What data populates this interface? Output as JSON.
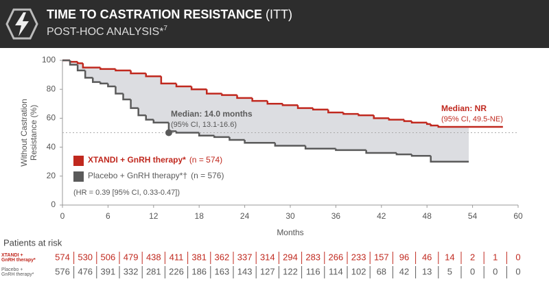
{
  "header": {
    "title": "TIME TO CASTRATION RESISTANCE",
    "title_suffix": "(ITT)",
    "subtitle": "POST-HOC ANALYSIS*",
    "subtitle_ref": "7"
  },
  "chart_data": {
    "type": "line",
    "step": true,
    "xlabel": "Months",
    "ylabel": [
      "Without Castration",
      "Resistance (%)"
    ],
    "xlim": [
      0,
      60
    ],
    "xticks": [
      0,
      6,
      12,
      18,
      24,
      30,
      36,
      42,
      48,
      54,
      60
    ],
    "ylim": [
      0,
      100
    ],
    "yticks": [
      0,
      20,
      40,
      60,
      80,
      100
    ],
    "shade_between": true,
    "shade_color": "#dcdde1",
    "reference_line": 50,
    "series": [
      {
        "name": "XTANDI + GnRH therapy*",
        "n_label": "(n = 574)",
        "color": "#c0281e",
        "x": [
          0,
          1,
          2,
          2.7,
          5,
          7,
          9,
          11,
          13,
          15,
          17,
          19,
          21,
          23,
          25,
          27,
          29,
          31,
          33,
          35,
          37,
          39,
          41,
          43,
          45,
          46,
          48,
          48.5,
          49.5,
          58
        ],
        "values": [
          100,
          99,
          98,
          95,
          94,
          93,
          91,
          89,
          84,
          82,
          80,
          77,
          76,
          74,
          72,
          70,
          69,
          67,
          66,
          64,
          63,
          62,
          60,
          59,
          58,
          57,
          56,
          55,
          54,
          54
        ]
      },
      {
        "name": "Placebo + GnRH therapy*†",
        "n_label": "(n = 576)",
        "color": "#5a5a5a",
        "x": [
          0,
          1,
          2,
          3,
          4,
          5,
          6,
          7,
          8,
          9,
          10,
          11,
          12,
          14,
          15,
          18,
          20,
          22,
          24,
          28,
          32,
          36,
          40,
          44,
          46,
          48.5,
          53.5
        ],
        "values": [
          100,
          97,
          93,
          88,
          85,
          84,
          82,
          77,
          73,
          67,
          62,
          59,
          57,
          51,
          50,
          48,
          47,
          45,
          43,
          41,
          39,
          38,
          36,
          35,
          34,
          30,
          30
        ]
      }
    ],
    "median_point": {
      "x": 14,
      "y": 50
    },
    "annotations": {
      "median_placebo": "Median: 14.0 months",
      "median_placebo_ci": "(95% CI, 13.1-16.6)",
      "median_xtandi": "Median: NR",
      "median_xtandi_ci": "(95% CI, 49.5-NE)",
      "hr": "(HR = 0.39 [95% CI, 0.33-0.47])"
    }
  },
  "risk_table": {
    "title": "Patients at risk",
    "rows": [
      {
        "label_lines": [
          "XTANDI +",
          "GnRH therapy*"
        ],
        "values": [
          574,
          530,
          506,
          479,
          438,
          411,
          381,
          362,
          337,
          314,
          294,
          283,
          266,
          233,
          157,
          96,
          46,
          14,
          2,
          1,
          0
        ]
      },
      {
        "label_lines": [
          "Placebo +",
          "GnRH therapy*"
        ],
        "values": [
          576,
          476,
          391,
          332,
          281,
          226,
          186,
          163,
          143,
          127,
          122,
          116,
          114,
          102,
          68,
          42,
          13,
          5,
          0,
          0,
          0
        ]
      }
    ]
  }
}
